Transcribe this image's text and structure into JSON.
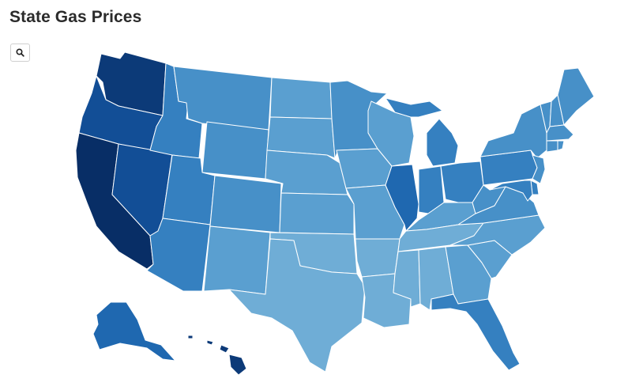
{
  "header": {
    "title": "State Gas Prices"
  },
  "search": {
    "icon": "search-icon"
  },
  "palette": {
    "1": "#6fadd6",
    "2": "#5a9fd0",
    "3": "#4790c8",
    "4": "#3580c0",
    "5": "#1f68b0",
    "6": "#124e96",
    "7": "#0c3a78",
    "8": "#082e66",
    "stroke": "#ffffff"
  },
  "states": [
    {
      "id": "WA",
      "level": 7
    },
    {
      "id": "OR",
      "level": 6
    },
    {
      "id": "CA",
      "level": 8
    },
    {
      "id": "NV",
      "level": 6
    },
    {
      "id": "ID",
      "level": 4
    },
    {
      "id": "MT",
      "level": 3
    },
    {
      "id": "WY",
      "level": 3
    },
    {
      "id": "UT",
      "level": 4
    },
    {
      "id": "AZ",
      "level": 4
    },
    {
      "id": "CO",
      "level": 3
    },
    {
      "id": "NM",
      "level": 2
    },
    {
      "id": "ND",
      "level": 2
    },
    {
      "id": "SD",
      "level": 2
    },
    {
      "id": "NE",
      "level": 2
    },
    {
      "id": "KS",
      "level": 2
    },
    {
      "id": "OK",
      "level": 1
    },
    {
      "id": "TX",
      "level": 1
    },
    {
      "id": "MN",
      "level": 3
    },
    {
      "id": "IA",
      "level": 2
    },
    {
      "id": "MO",
      "level": 2
    },
    {
      "id": "AR",
      "level": 1
    },
    {
      "id": "LA",
      "level": 1
    },
    {
      "id": "WI",
      "level": 2
    },
    {
      "id": "IL",
      "level": 5
    },
    {
      "id": "MI",
      "level": 4
    },
    {
      "id": "IN",
      "level": 4
    },
    {
      "id": "OH",
      "level": 4
    },
    {
      "id": "KY",
      "level": 2
    },
    {
      "id": "TN",
      "level": 1
    },
    {
      "id": "MS",
      "level": 1
    },
    {
      "id": "AL",
      "level": 1
    },
    {
      "id": "GA",
      "level": 2
    },
    {
      "id": "FL",
      "level": 4
    },
    {
      "id": "SC",
      "level": 2
    },
    {
      "id": "NC",
      "level": 2
    },
    {
      "id": "VA",
      "level": 3
    },
    {
      "id": "WV",
      "level": 3
    },
    {
      "id": "PA",
      "level": 4
    },
    {
      "id": "NY",
      "level": 3
    },
    {
      "id": "VT",
      "level": 3
    },
    {
      "id": "NH",
      "level": 3
    },
    {
      "id": "ME",
      "level": 3
    },
    {
      "id": "MA",
      "level": 3
    },
    {
      "id": "CT",
      "level": 3
    },
    {
      "id": "RI",
      "level": 3
    },
    {
      "id": "NJ",
      "level": 3
    },
    {
      "id": "DE",
      "level": 4
    },
    {
      "id": "MD",
      "level": 4
    },
    {
      "id": "AK",
      "level": 5
    },
    {
      "id": "HI",
      "level": 7
    }
  ]
}
